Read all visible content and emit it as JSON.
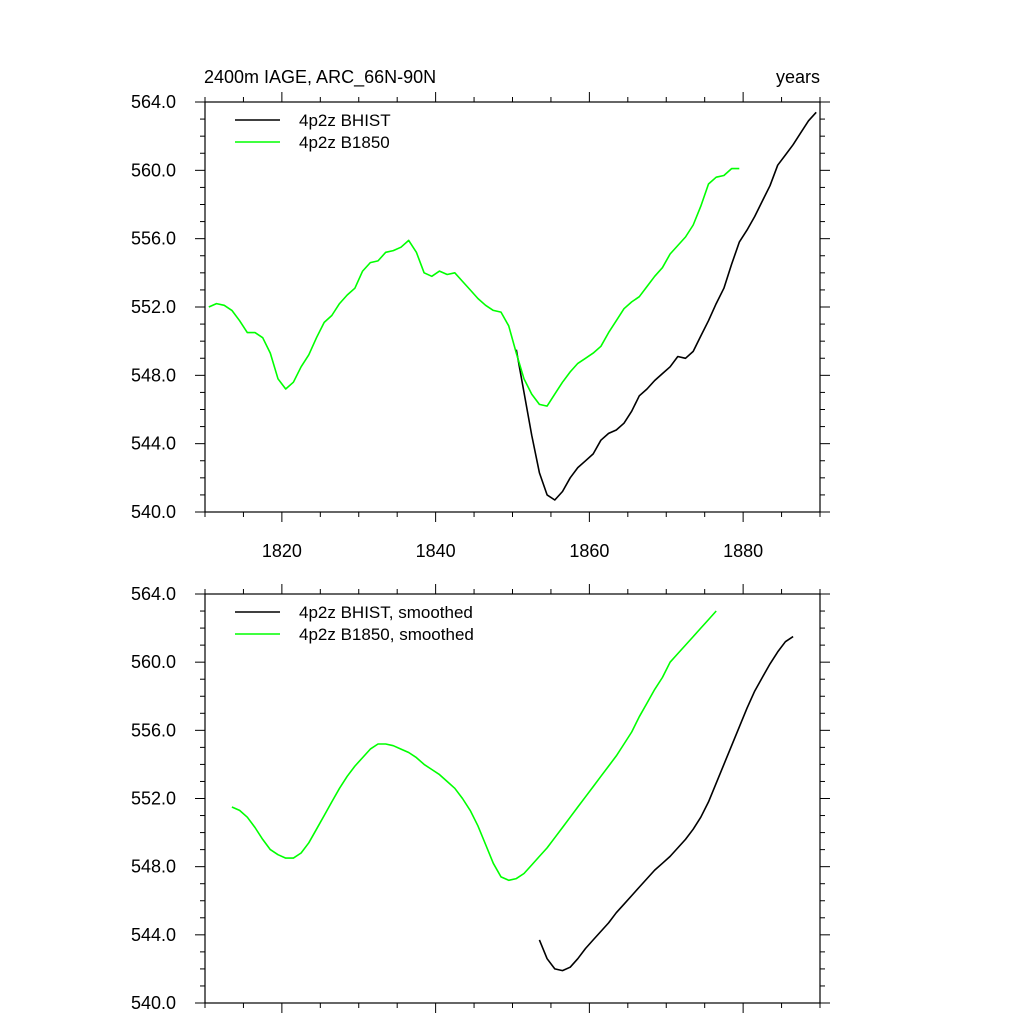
{
  "colors": {
    "bhist": "#000000",
    "b1850": "#00ff00",
    "axis": "#000000",
    "background": "#ffffff"
  },
  "chart_data": [
    {
      "type": "line",
      "title": "2400m IAGE, ARC_66N-90N",
      "title_right": "years",
      "xlim": [
        1810,
        1890
      ],
      "ylim": [
        540,
        564
      ],
      "x_ticks": [
        1820,
        1840,
        1860,
        1880
      ],
      "x_tick_labels": [
        "1820",
        "1840",
        "1860",
        "1880"
      ],
      "y_ticks": [
        540,
        544,
        548,
        552,
        556,
        560,
        564
      ],
      "y_tick_labels": [
        "540.0",
        "544.0",
        "548.0",
        "552.0",
        "556.0",
        "560.0",
        "564.0"
      ],
      "legend_position": "top-left",
      "series": [
        {
          "name": "4p2z BHIST",
          "color_key": "bhist",
          "x": [
            1850.5,
            1851.5,
            1852.5,
            1853.5,
            1854.5,
            1855.5,
            1856.5,
            1857.5,
            1858.5,
            1859.5,
            1860.5,
            1861.5,
            1862.5,
            1863.5,
            1864.5,
            1865.5,
            1866.5,
            1867.5,
            1868.5,
            1869.5,
            1870.5,
            1871.5,
            1872.5,
            1873.5,
            1874.5,
            1875.5,
            1876.5,
            1877.5,
            1878.5,
            1879.5,
            1880.5,
            1881.5,
            1882.5,
            1883.5,
            1884.5,
            1885.5,
            1886.5,
            1887.5,
            1888.5,
            1889.5
          ],
          "values": [
            549.5,
            547.0,
            544.5,
            542.3,
            541.0,
            540.7,
            541.2,
            542.0,
            542.6,
            543.0,
            543.4,
            544.2,
            544.6,
            544.8,
            545.2,
            545.9,
            546.8,
            547.2,
            547.7,
            548.1,
            548.5,
            549.1,
            549.0,
            549.4,
            550.3,
            551.2,
            552.2,
            553.1,
            554.5,
            555.8,
            556.5,
            557.3,
            558.2,
            559.1,
            560.3,
            560.9,
            561.5,
            562.2,
            562.9,
            563.4
          ]
        },
        {
          "name": "4p2z B1850",
          "color_key": "b1850",
          "x": [
            1810.5,
            1811.5,
            1812.5,
            1813.5,
            1814.5,
            1815.5,
            1816.5,
            1817.5,
            1818.5,
            1819.5,
            1820.5,
            1821.5,
            1822.5,
            1823.5,
            1824.5,
            1825.5,
            1826.5,
            1827.5,
            1828.5,
            1829.5,
            1830.5,
            1831.5,
            1832.5,
            1833.5,
            1834.5,
            1835.5,
            1836.5,
            1837.5,
            1838.5,
            1839.5,
            1840.5,
            1841.5,
            1842.5,
            1843.5,
            1844.5,
            1845.5,
            1846.5,
            1847.5,
            1848.5,
            1849.5,
            1850.5,
            1851.5,
            1852.5,
            1853.5,
            1854.5,
            1855.5,
            1856.5,
            1857.5,
            1858.5,
            1859.5,
            1860.5,
            1861.5,
            1862.5,
            1863.5,
            1864.5,
            1865.5,
            1866.5,
            1867.5,
            1868.5,
            1869.5,
            1870.5,
            1871.5,
            1872.5,
            1873.5,
            1874.5,
            1875.5,
            1876.5,
            1877.5,
            1878.5,
            1879.5
          ],
          "values": [
            552.0,
            552.2,
            552.1,
            551.8,
            551.2,
            550.5,
            550.5,
            550.2,
            549.3,
            547.8,
            547.2,
            547.6,
            548.5,
            549.2,
            550.2,
            551.1,
            551.5,
            552.2,
            552.7,
            553.1,
            554.1,
            554.6,
            554.7,
            555.2,
            555.3,
            555.5,
            555.9,
            555.2,
            554.0,
            553.8,
            554.1,
            553.9,
            554.0,
            553.5,
            553.0,
            552.5,
            552.1,
            551.8,
            551.7,
            550.9,
            549.3,
            547.8,
            546.9,
            546.3,
            546.2,
            546.9,
            547.6,
            548.2,
            548.7,
            549.0,
            549.3,
            549.7,
            550.5,
            551.2,
            551.9,
            552.3,
            552.6,
            553.2,
            553.8,
            554.3,
            555.1,
            555.6,
            556.1,
            556.8,
            557.9,
            559.2,
            559.6,
            559.7,
            560.1,
            560.1
          ]
        }
      ]
    },
    {
      "type": "line",
      "title": "",
      "xlim": [
        1810,
        1890
      ],
      "ylim": [
        540,
        564
      ],
      "x_ticks": [
        1820,
        1840,
        1860,
        1880
      ],
      "x_tick_labels": [],
      "y_ticks": [
        540,
        544,
        548,
        552,
        556,
        560,
        564
      ],
      "y_tick_labels": [
        "540.0",
        "544.0",
        "548.0",
        "552.0",
        "556.0",
        "560.0",
        "564.0"
      ],
      "legend_position": "top-left",
      "series": [
        {
          "name": "4p2z BHIST, smoothed",
          "color_key": "bhist",
          "x": [
            1853.5,
            1854.5,
            1855.5,
            1856.5,
            1857.5,
            1858.5,
            1859.5,
            1860.5,
            1861.5,
            1862.5,
            1863.5,
            1864.5,
            1865.5,
            1866.5,
            1867.5,
            1868.5,
            1869.5,
            1870.5,
            1871.5,
            1872.5,
            1873.5,
            1874.5,
            1875.5,
            1876.5,
            1877.5,
            1878.5,
            1879.5,
            1880.5,
            1881.5,
            1882.5,
            1883.5,
            1884.5,
            1885.5,
            1886.5
          ],
          "values": [
            543.7,
            542.6,
            542.0,
            541.9,
            542.1,
            542.6,
            543.2,
            543.7,
            544.2,
            544.7,
            545.3,
            545.8,
            546.3,
            546.8,
            547.3,
            547.8,
            548.2,
            548.6,
            549.1,
            549.6,
            550.2,
            550.9,
            551.8,
            552.9,
            554.0,
            555.1,
            556.2,
            557.3,
            558.3,
            559.1,
            559.9,
            560.6,
            561.2,
            561.5
          ]
        },
        {
          "name": "4p2z B1850, smoothed",
          "color_key": "b1850",
          "x": [
            1813.5,
            1814.5,
            1815.5,
            1816.5,
            1817.5,
            1818.5,
            1819.5,
            1820.5,
            1821.5,
            1822.5,
            1823.5,
            1824.5,
            1825.5,
            1826.5,
            1827.5,
            1828.5,
            1829.5,
            1830.5,
            1831.5,
            1832.5,
            1833.5,
            1834.5,
            1835.5,
            1836.5,
            1837.5,
            1838.5,
            1839.5,
            1840.5,
            1841.5,
            1842.5,
            1843.5,
            1844.5,
            1845.5,
            1846.5,
            1847.5,
            1848.5,
            1849.5,
            1850.5,
            1851.5,
            1852.5,
            1853.5,
            1854.5,
            1855.5,
            1856.5,
            1857.5,
            1858.5,
            1859.5,
            1860.5,
            1861.5,
            1862.5,
            1863.5,
            1864.5,
            1865.5,
            1866.5,
            1867.5,
            1868.5,
            1869.5,
            1870.5,
            1871.5,
            1872.5,
            1873.5,
            1874.5,
            1875.5,
            1876.5
          ],
          "values": [
            551.5,
            551.3,
            550.9,
            550.3,
            549.6,
            549.0,
            548.7,
            548.5,
            548.5,
            548.8,
            549.4,
            550.2,
            551.0,
            551.8,
            552.6,
            553.3,
            553.9,
            554.4,
            554.9,
            555.2,
            555.2,
            555.1,
            554.9,
            554.7,
            554.4,
            554.0,
            553.7,
            553.4,
            553.0,
            552.6,
            552.0,
            551.3,
            550.4,
            549.3,
            548.2,
            547.4,
            547.2,
            547.3,
            547.6,
            548.1,
            548.6,
            549.1,
            549.7,
            550.3,
            550.9,
            551.5,
            552.1,
            552.7,
            553.3,
            553.9,
            554.5,
            555.2,
            555.9,
            556.8,
            557.6,
            558.4,
            559.1,
            560.0,
            560.5,
            561.0,
            561.5,
            562.0,
            562.5,
            563.0
          ]
        }
      ]
    }
  ]
}
